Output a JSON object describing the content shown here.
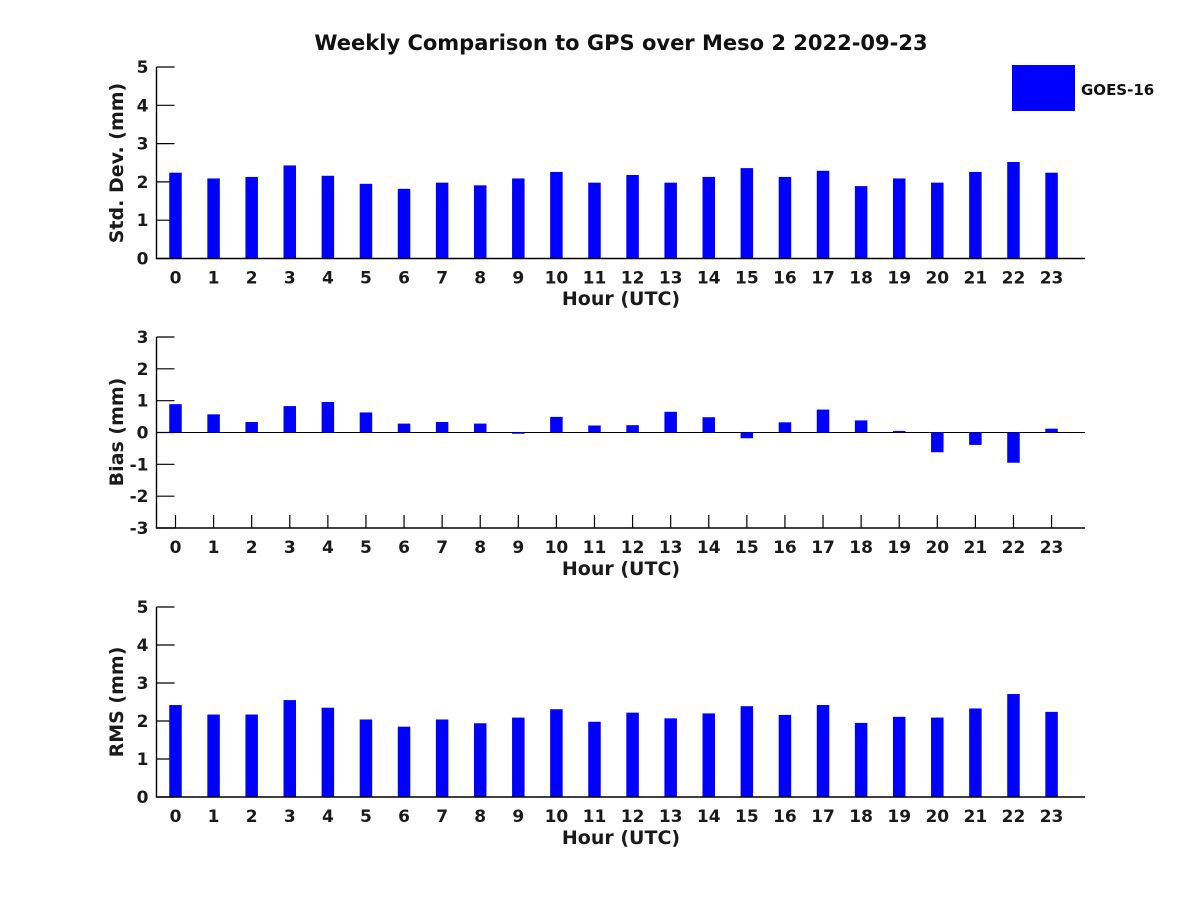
{
  "title": "Weekly Comparison to GPS over Meso 2 2022-09-23",
  "legend": {
    "label": "GOES-16",
    "swatch_color": "#0000ff",
    "position": "top-right"
  },
  "chart_data": [
    {
      "type": "bar",
      "series_name": "GOES-16",
      "bar_color": "#0000ff",
      "ylabel": "Std. Dev. (mm)",
      "xlabel": "Hour (UTC)",
      "ylim": [
        0,
        5
      ],
      "yticks": [
        0,
        1,
        2,
        3,
        4,
        5
      ],
      "grid": false,
      "categories": [
        "0",
        "1",
        "2",
        "3",
        "4",
        "5",
        "6",
        "7",
        "8",
        "9",
        "10",
        "11",
        "12",
        "13",
        "14",
        "15",
        "16",
        "17",
        "18",
        "19",
        "20",
        "21",
        "22",
        "23"
      ],
      "values": [
        2.24,
        2.09,
        2.13,
        2.43,
        2.16,
        1.95,
        1.82,
        1.98,
        1.91,
        2.09,
        2.26,
        1.98,
        2.18,
        1.98,
        2.13,
        2.36,
        2.13,
        2.29,
        1.89,
        2.09,
        1.98,
        2.26,
        2.52,
        2.24
      ]
    },
    {
      "type": "bar",
      "series_name": "GOES-16",
      "bar_color": "#0000ff",
      "ylabel": "Bias (mm)",
      "xlabel": "Hour (UTC)",
      "ylim": [
        -3,
        3
      ],
      "yticks": [
        -3,
        -2,
        -1,
        0,
        1,
        2,
        3
      ],
      "grid": false,
      "categories": [
        "0",
        "1",
        "2",
        "3",
        "4",
        "5",
        "6",
        "7",
        "8",
        "9",
        "10",
        "11",
        "12",
        "13",
        "14",
        "15",
        "16",
        "17",
        "18",
        "19",
        "20",
        "21",
        "22",
        "23"
      ],
      "values": [
        0.89,
        0.57,
        0.33,
        0.83,
        0.96,
        0.63,
        0.28,
        0.33,
        0.28,
        -0.04,
        0.49,
        0.22,
        0.23,
        0.65,
        0.48,
        -0.18,
        0.32,
        0.72,
        0.38,
        0.05,
        -0.62,
        -0.39,
        -0.95,
        0.12
      ]
    },
    {
      "type": "bar",
      "series_name": "GOES-16",
      "bar_color": "#0000ff",
      "ylabel": "RMS (mm)",
      "xlabel": "Hour (UTC)",
      "ylim": [
        0,
        5
      ],
      "yticks": [
        0,
        1,
        2,
        3,
        4,
        5
      ],
      "grid": false,
      "categories": [
        "0",
        "1",
        "2",
        "3",
        "4",
        "5",
        "6",
        "7",
        "8",
        "9",
        "10",
        "11",
        "12",
        "13",
        "14",
        "15",
        "16",
        "17",
        "18",
        "19",
        "20",
        "21",
        "22",
        "23"
      ],
      "values": [
        2.42,
        2.17,
        2.17,
        2.55,
        2.35,
        2.04,
        1.85,
        2.04,
        1.94,
        2.09,
        2.31,
        1.98,
        2.22,
        2.07,
        2.2,
        2.39,
        2.16,
        2.42,
        1.95,
        2.11,
        2.09,
        2.33,
        2.71,
        2.24
      ]
    }
  ],
  "style": {
    "axis_color": "#000000",
    "text_color": "#1a1a1a",
    "background": "#ffffff"
  }
}
